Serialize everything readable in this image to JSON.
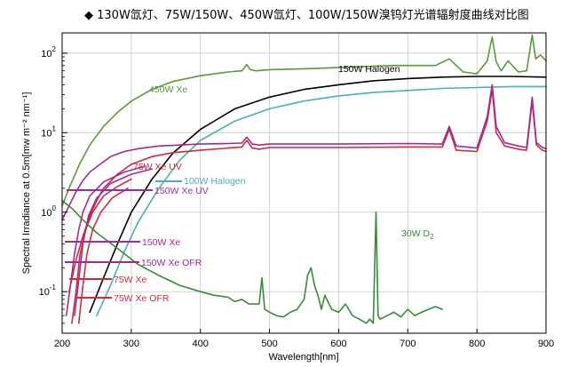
{
  "chart_data": {
    "type": "line",
    "title": "◆ 130W氙灯、75W/150W、450W氙灯、100W/150W溴钨灯光谱辐射度曲线对比图",
    "xlabel": "Wavelength[nm]",
    "ylabel": "Spectral Irradiance at 0.5m[mw m⁻² nm⁻¹]",
    "xlim": [
      200,
      900
    ],
    "ylim": [
      0.03,
      180
    ],
    "yscale": "log",
    "x_ticks": [
      200,
      300,
      400,
      500,
      600,
      700,
      800,
      900
    ],
    "x_tick_labels": [
      "200",
      "300",
      "400",
      "500",
      "600",
      "700",
      "800",
      "900"
    ],
    "y_ticks": [
      {
        "value": 100,
        "base": "10",
        "exp": "2"
      },
      {
        "value": 10,
        "base": "10",
        "exp": "1"
      },
      {
        "value": 1,
        "base": "10",
        "exp": "0"
      },
      {
        "value": 0.1,
        "base": "10",
        "exp": "-1"
      }
    ],
    "grid": true,
    "series": [
      {
        "name": "450W Xe",
        "color": "#5a9a3a",
        "x": [
          200,
          210,
          225,
          240,
          260,
          280,
          300,
          330,
          360,
          400,
          440,
          460,
          467,
          472,
          480,
          500,
          560,
          620,
          680,
          740,
          760,
          780,
          800,
          815,
          822,
          828,
          835,
          845,
          860,
          872,
          880,
          885,
          892,
          900
        ],
        "y": [
          1.2,
          2.0,
          4.0,
          7.0,
          12,
          18,
          25,
          35,
          44,
          52,
          58,
          60,
          72,
          62,
          60,
          62,
          64,
          67,
          70,
          70,
          85,
          58,
          55,
          80,
          160,
          78,
          60,
          80,
          58,
          60,
          170,
          85,
          95,
          80
        ]
      },
      {
        "name": "150W Halogen",
        "color": "#000000",
        "x": [
          240,
          260,
          280,
          300,
          330,
          360,
          400,
          450,
          500,
          550,
          600,
          650,
          700,
          750,
          800,
          850,
          900
        ],
        "y": [
          0.055,
          0.15,
          0.4,
          1.0,
          2.6,
          5.5,
          11,
          20,
          28,
          35,
          40,
          45,
          48,
          50,
          51,
          51,
          50
        ]
      },
      {
        "name": "100W Halogen",
        "color": "#4ab0b0",
        "x": [
          250,
          270,
          290,
          310,
          340,
          370,
          400,
          450,
          500,
          550,
          600,
          650,
          700,
          750,
          800,
          850,
          900
        ],
        "y": [
          0.05,
          0.12,
          0.32,
          0.75,
          2.0,
          4.5,
          8,
          14,
          20,
          25,
          29,
          32,
          34,
          36,
          37,
          38,
          38
        ]
      },
      {
        "name": "75W Xe UV",
        "color": "#d02a3a",
        "x": [
          210,
          220,
          230,
          240,
          250,
          260,
          280,
          300,
          330,
          360,
          400,
          440,
          460,
          467,
          475,
          485,
          500,
          600,
          700,
          750,
          760,
          770,
          800,
          815,
          822,
          828,
          840,
          860,
          872,
          880,
          886,
          895,
          900
        ],
        "y": [
          0.1,
          0.25,
          0.5,
          0.9,
          1.4,
          2.0,
          3.0,
          4.0,
          5.0,
          5.6,
          6.0,
          6.4,
          6.6,
          8.0,
          6.4,
          6.2,
          6.5,
          6.5,
          6.6,
          6.6,
          11,
          6.0,
          5.8,
          14,
          35,
          10,
          6.8,
          6.2,
          6.0,
          25,
          7.0,
          6.0,
          5.8
        ]
      },
      {
        "name": "150W Xe UV",
        "color": "#a02a98",
        "x": [
          200,
          210,
          220,
          230,
          240,
          255,
          270,
          290,
          310,
          340,
          370,
          400,
          440,
          460,
          467,
          475,
          485,
          500,
          600,
          700,
          750,
          760,
          770,
          800,
          815,
          822,
          828,
          840,
          860,
          872,
          880,
          886,
          895,
          900
        ],
        "y": [
          0.8,
          1.2,
          1.8,
          2.5,
          3.2,
          4.0,
          5.0,
          5.8,
          6.3,
          6.8,
          7.0,
          7.2,
          7.3,
          7.4,
          8.8,
          7.2,
          7.0,
          7.2,
          7.2,
          7.3,
          7.2,
          12,
          6.8,
          6.4,
          16,
          40,
          12,
          7.5,
          6.8,
          6.5,
          28,
          7.5,
          6.5,
          6.3
        ]
      },
      {
        "name": "150W Xe",
        "color": "#a02a98",
        "x": [
          206,
          212,
          218,
          224,
          230,
          240,
          260,
          290,
          320
        ],
        "y": [
          0.05,
          0.12,
          0.3,
          0.6,
          1.0,
          1.6,
          2.4,
          3.2,
          3.8
        ]
      },
      {
        "name": "150W Xe OFR",
        "color": "#a02a98",
        "x": [
          218,
          224,
          230,
          238,
          250,
          270,
          300,
          330
        ],
        "y": [
          0.05,
          0.14,
          0.4,
          0.9,
          1.5,
          2.3,
          3.0,
          3.5
        ]
      },
      {
        "name": "75W Xe",
        "color": "#d02a3a",
        "x": [
          214,
          220,
          226,
          234,
          244,
          260,
          280,
          300
        ],
        "y": [
          0.04,
          0.1,
          0.3,
          0.6,
          1.0,
          1.6,
          2.1,
          2.6
        ]
      },
      {
        "name": "75W Xe OFR",
        "color": "#d02a3a",
        "x": [
          224,
          230,
          236,
          244,
          256,
          272,
          295
        ],
        "y": [
          0.04,
          0.12,
          0.3,
          0.6,
          1.0,
          1.5,
          2.0
        ]
      },
      {
        "name": "30W D₂",
        "color": "#3a8a3a",
        "x": [
          200,
          215,
          230,
          250,
          280,
          310,
          340,
          370,
          400,
          420,
          440,
          450,
          460,
          470,
          480,
          485,
          489,
          493,
          500,
          510,
          520,
          530,
          540,
          550,
          555,
          560,
          565,
          570,
          575,
          580,
          590,
          600,
          610,
          620,
          630,
          640,
          645,
          650,
          654,
          657,
          660,
          670,
          680,
          690,
          700,
          710,
          720,
          730,
          740,
          750
        ],
        "y": [
          1.4,
          1.1,
          0.8,
          0.55,
          0.35,
          0.22,
          0.16,
          0.12,
          0.1,
          0.09,
          0.085,
          0.075,
          0.08,
          0.07,
          0.07,
          0.07,
          0.15,
          0.06,
          0.055,
          0.05,
          0.048,
          0.055,
          0.06,
          0.08,
          0.16,
          0.2,
          0.12,
          0.09,
          0.06,
          0.09,
          0.06,
          0.055,
          0.07,
          0.05,
          0.045,
          0.04,
          0.045,
          0.04,
          1.0,
          0.05,
          0.045,
          0.05,
          0.055,
          0.048,
          0.06,
          0.05,
          0.055,
          0.06,
          0.065,
          0.06
        ]
      }
    ]
  },
  "labels": {
    "halogen150": "150W Halogen",
    "xe450": "450W Xe",
    "xe75uv": "75W Xe UV",
    "halogen100": "100W Halogen",
    "xe150uv": "150W Xe UV",
    "xe150": "150W Xe",
    "xe150ofr": "150W Xe OFR",
    "xe75": "75W Xe",
    "xe75ofr": "75W Xe OFR",
    "d2_base": "30W D",
    "d2_sub": "2"
  }
}
